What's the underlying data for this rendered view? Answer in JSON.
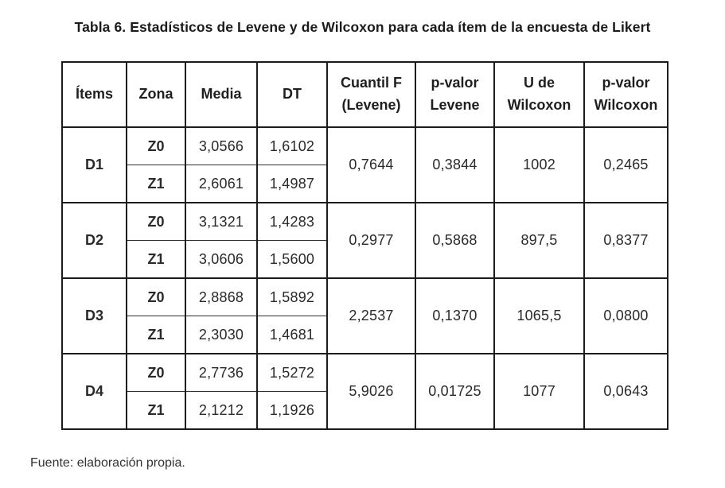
{
  "page": {
    "title": "Tabla 6. Estadísticos de Levene y de Wilcoxon para cada ítem de la encuesta de Likert",
    "source_note": "Fuente: elaboración propia."
  },
  "table": {
    "columns": {
      "items": "Ítems",
      "zona": "Zona",
      "media": "Media",
      "dt": "DT",
      "cuantil_f": "Cuantil F (Levene)",
      "p_levene": "p-valor Levene",
      "u_wilcoxon": "U de Wilcoxon",
      "p_wilcoxon": "p-valor Wilcoxon"
    },
    "groups": [
      {
        "item": "D1",
        "rows": [
          {
            "zona": "Z0",
            "media": "3,0566",
            "dt": "1,6102"
          },
          {
            "zona": "Z1",
            "media": "2,6061",
            "dt": "1,4987"
          }
        ],
        "stats": {
          "cuantil_f": "0,7644",
          "p_levene": "0,3844",
          "u_wilcoxon": "1002",
          "p_wilcoxon": "0,2465"
        }
      },
      {
        "item": "D2",
        "rows": [
          {
            "zona": "Z0",
            "media": "3,1321",
            "dt": "1,4283"
          },
          {
            "zona": "Z1",
            "media": "3,0606",
            "dt": "1,5600"
          }
        ],
        "stats": {
          "cuantil_f": "0,2977",
          "p_levene": "0,5868",
          "u_wilcoxon": "897,5",
          "p_wilcoxon": "0,8377"
        }
      },
      {
        "item": "D3",
        "rows": [
          {
            "zona": "Z0",
            "media": "2,8868",
            "dt": "1,5892"
          },
          {
            "zona": "Z1",
            "media": "2,3030",
            "dt": "1,4681"
          }
        ],
        "stats": {
          "cuantil_f": "2,2537",
          "p_levene": "0,1370",
          "u_wilcoxon": "1065,5",
          "p_wilcoxon": "0,0800"
        }
      },
      {
        "item": "D4",
        "rows": [
          {
            "zona": "Z0",
            "media": "2,7736",
            "dt": "1,5272"
          },
          {
            "zona": "Z1",
            "media": "2,1212",
            "dt": "1,1926"
          }
        ],
        "stats": {
          "cuantil_f": "5,9026",
          "p_levene": "0,01725",
          "u_wilcoxon": "1077",
          "p_wilcoxon": "0,0643"
        }
      }
    ]
  }
}
